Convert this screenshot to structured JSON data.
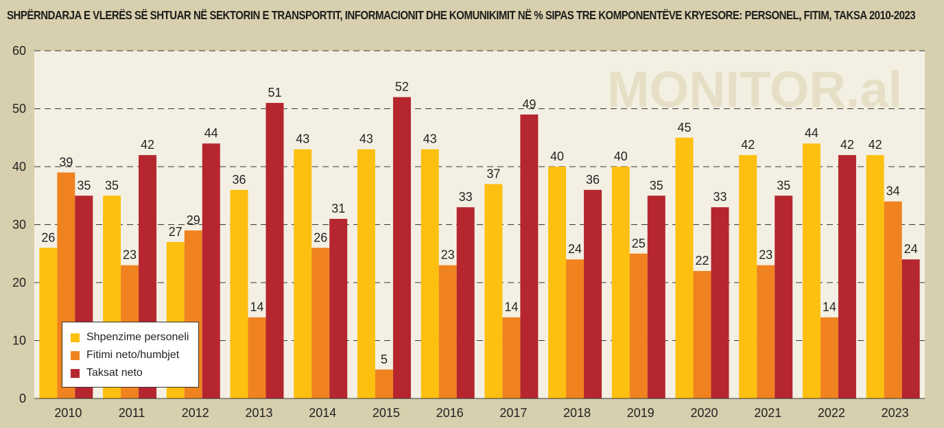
{
  "chart_data": {
    "type": "bar",
    "title": "SHPËRNDARJA E VLERËS SË SHTUAR NË SEKTORIN E TRANSPORTIT, INFORMACIONIT DHE KOMUNIKIMIT NË % SIPAS TRE KOMPONENTËVE KRYESORE: PERSONEL, FITIM, TAKSA 2010-2023",
    "watermark": "MONITOR.al",
    "categories": [
      "2010",
      "2011",
      "2012",
      "2013",
      "2014",
      "2015",
      "2016",
      "2017",
      "2018",
      "2019",
      "2020",
      "2021",
      "2022",
      "2023"
    ],
    "series": [
      {
        "name": "Shpenzime personeli",
        "color": "#fdc010",
        "values": [
          26,
          35,
          27,
          36,
          43,
          43,
          43,
          37,
          40,
          40,
          45,
          42,
          44,
          42
        ]
      },
      {
        "name": "Fitimi neto/humbjet",
        "color": "#f0821f",
        "values": [
          39,
          23,
          29,
          14,
          26,
          5,
          23,
          14,
          24,
          25,
          22,
          23,
          14,
          34
        ]
      },
      {
        "name": "Taksat neto",
        "color": "#b5262f",
        "values": [
          35,
          42,
          44,
          51,
          31,
          52,
          33,
          49,
          36,
          35,
          33,
          35,
          42,
          24
        ]
      }
    ],
    "ylim": [
      0,
      60
    ],
    "yticks": [
      0,
      10,
      20,
      30,
      40,
      50,
      60
    ],
    "grid": true,
    "legend": "bottom-left",
    "xlabel": "",
    "ylabel": ""
  }
}
